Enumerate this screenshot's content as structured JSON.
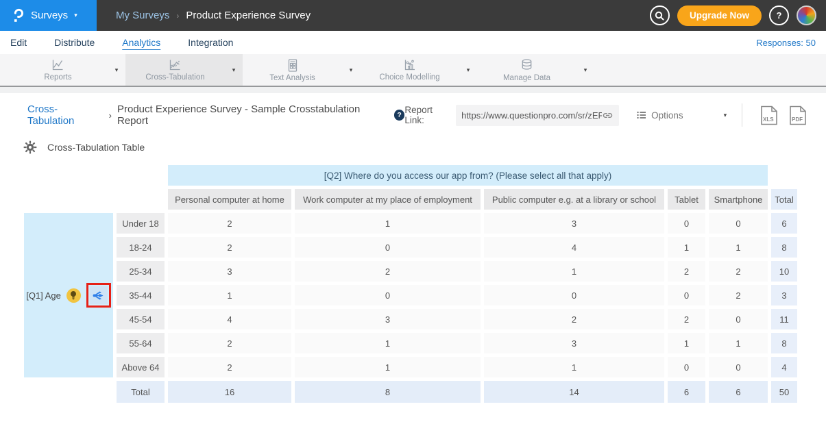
{
  "header": {
    "logo_icon": "questionpro-logo",
    "product_menu_label": "Surveys",
    "breadcrumb": [
      "My Surveys",
      "Product Experience Survey"
    ],
    "upgrade_label": "Upgrade Now",
    "search_icon": "search-icon",
    "help_icon": "question-mark-icon",
    "avatar_icon": "user-avatar"
  },
  "tabs": {
    "items": [
      "Edit",
      "Distribute",
      "Analytics",
      "Integration"
    ],
    "active": "Analytics",
    "responses_label": "Responses: 50"
  },
  "toolbar": {
    "items": [
      {
        "label": "Reports",
        "icon": "line-chart-icon",
        "selected": false
      },
      {
        "label": "Cross-Tabulation",
        "icon": "cross-tab-chart-icon",
        "selected": true
      },
      {
        "label": "Text Analysis",
        "icon": "text-analysis-icon",
        "selected": false
      },
      {
        "label": "Choice Modelling",
        "icon": "choice-modelling-icon",
        "selected": false
      },
      {
        "label": "Manage Data",
        "icon": "database-icon",
        "selected": false
      }
    ]
  },
  "report_bar": {
    "breadcrumb_link": "Cross-Tabulation",
    "separator": "›",
    "title": "Product Experience Survey - Sample Crosstabulation Report",
    "help_badge": "?",
    "report_link_label": "Report Link:",
    "report_link_value": "https://www.questionpro.com/sr/zEPPr",
    "link_icon": "link-icon",
    "options_label": "Options",
    "export_xls_label": "XLS",
    "export_pdf_label": "PDF"
  },
  "section": {
    "gear_icon": "gear-icon",
    "title": "Cross-Tabulation Table"
  },
  "crosstab": {
    "type": "table",
    "column_question": "[Q2] Where do you access our app from? (Please select all that apply)",
    "row_question": "[Q1] Age",
    "row_header_icons": [
      "insight-bulb-icon",
      "drill-down-split-icon"
    ],
    "highlight_color": "#e62117",
    "columns": [
      "Personal computer at home",
      "Work computer at my place of employment",
      "Public computer e.g. at a library or school",
      "Tablet",
      "Smartphone",
      "Total"
    ],
    "rows": [
      {
        "label": "Under 18",
        "values": [
          2,
          1,
          3,
          0,
          0,
          6
        ]
      },
      {
        "label": "18-24",
        "values": [
          2,
          0,
          4,
          1,
          1,
          8
        ]
      },
      {
        "label": "25-34",
        "values": [
          3,
          2,
          1,
          2,
          2,
          10
        ]
      },
      {
        "label": "35-44",
        "values": [
          1,
          0,
          0,
          0,
          2,
          3
        ]
      },
      {
        "label": "45-54",
        "values": [
          4,
          3,
          2,
          2,
          0,
          11
        ]
      },
      {
        "label": "55-64",
        "values": [
          2,
          1,
          3,
          1,
          1,
          8
        ]
      },
      {
        "label": "Above 64",
        "values": [
          2,
          1,
          1,
          0,
          0,
          4
        ]
      },
      {
        "label": "Total",
        "values": [
          16,
          8,
          14,
          6,
          6,
          50
        ]
      }
    ]
  },
  "colors": {
    "brand_blue": "#1d8ce8",
    "topbar_dark": "#3b3b3b",
    "accent_orange": "#f9a51a",
    "link_blue": "#2078c8",
    "table_band_blue": "#d3edfb",
    "total_blue": "#e4edf9",
    "highlight_red": "#e62117"
  }
}
